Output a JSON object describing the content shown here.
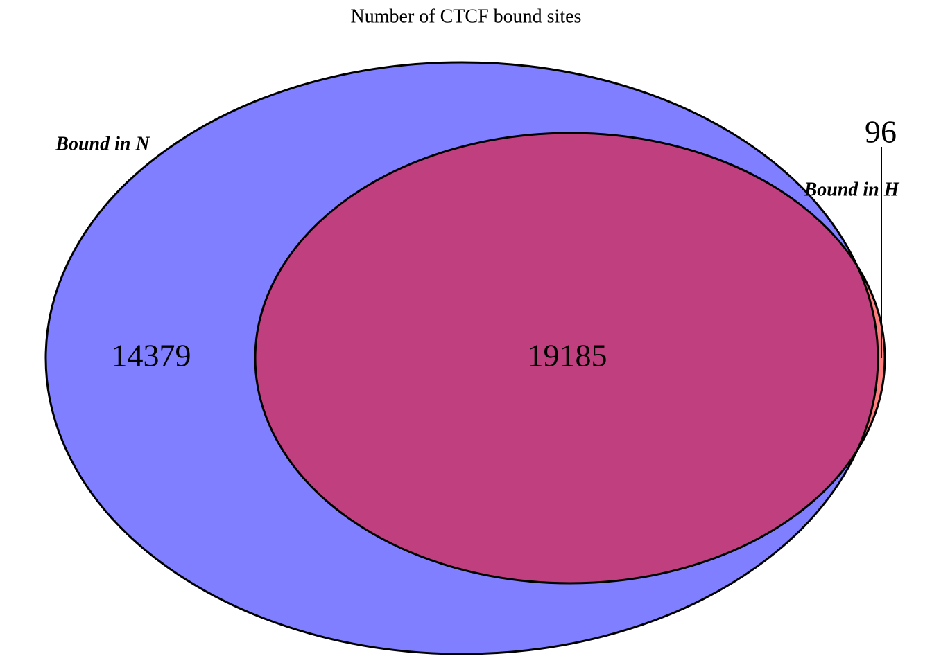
{
  "chart_data": {
    "type": "venn",
    "title": "Number of CTCF bound sites",
    "sets": [
      {
        "name": "Bound in N",
        "color": "#0000ff"
      },
      {
        "name": "Bound in H",
        "color": "#ff0000"
      }
    ],
    "values": [
      14379,
      19185,
      96
    ]
  }
}
